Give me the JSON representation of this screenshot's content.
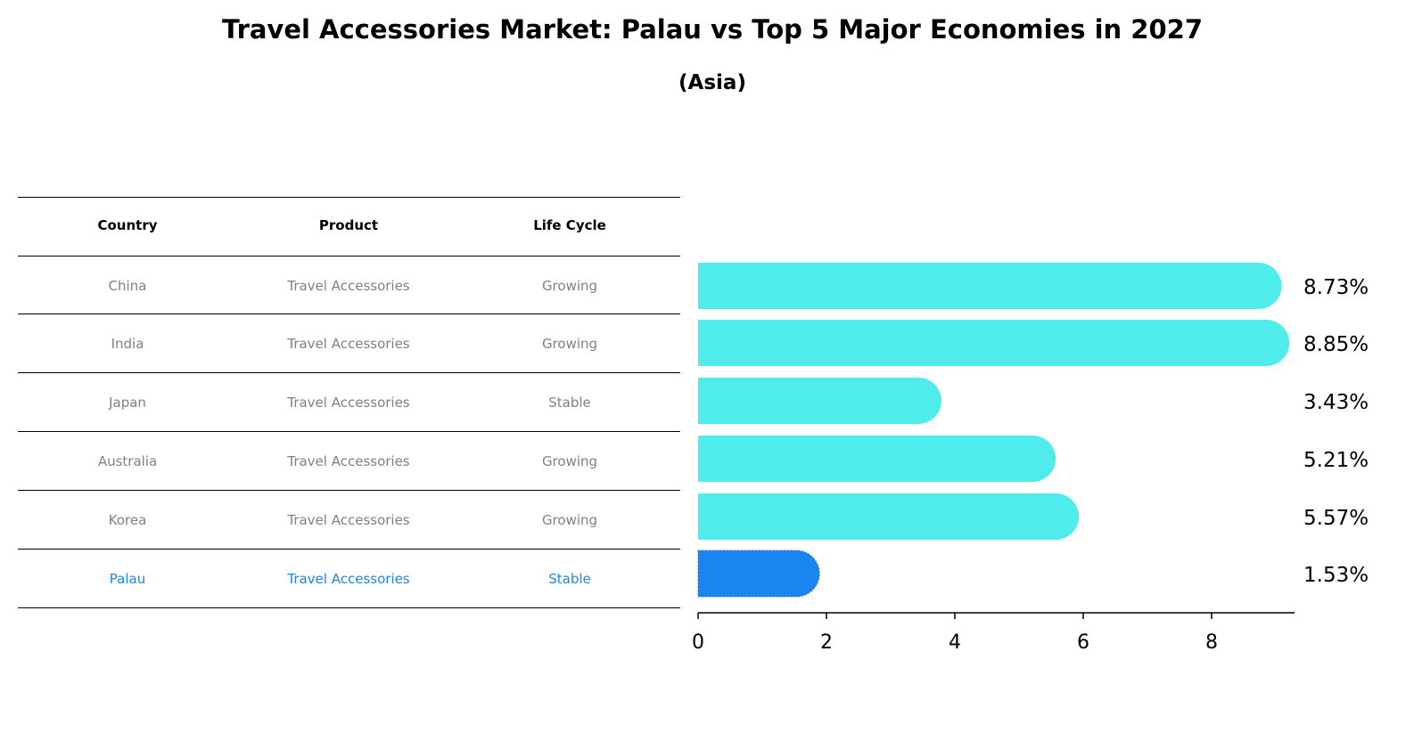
{
  "title": "Travel Accessories Market: Palau vs Top 5 Major Economies in 2027",
  "subtitle": "(Asia)",
  "table": {
    "headers": [
      "Country",
      "Product",
      "Life Cycle"
    ],
    "rows": [
      [
        "China",
        "Travel Accessories",
        "Growing"
      ],
      [
        "India",
        "Travel Accessories",
        "Growing"
      ],
      [
        "Japan",
        "Travel Accessories",
        "Stable"
      ],
      [
        "Australia",
        "Travel Accessories",
        "Growing"
      ],
      [
        "Korea",
        "Travel Accessories",
        "Growing"
      ],
      [
        "Palau",
        "Travel Accessories",
        "Stable"
      ]
    ]
  },
  "chart_data": {
    "type": "bar",
    "orientation": "horizontal",
    "title": "Travel Accessories Market: Palau vs Top 5 Major Economies in 2027",
    "subtitle": "(Asia)",
    "categories": [
      "China",
      "India",
      "Japan",
      "Australia",
      "Korea",
      "Palau"
    ],
    "values": [
      8.73,
      8.85,
      3.43,
      5.21,
      5.57,
      1.53
    ],
    "labels": [
      "8.73%",
      "8.85%",
      "3.43%",
      "5.21%",
      "5.57%",
      "1.53%"
    ],
    "highlight": "Palau",
    "xticks": [
      0,
      2,
      4,
      6,
      8
    ],
    "xlim": [
      0,
      9.3
    ],
    "colors": {
      "default": "#4eecea",
      "highlight": "#1a85f0"
    }
  }
}
